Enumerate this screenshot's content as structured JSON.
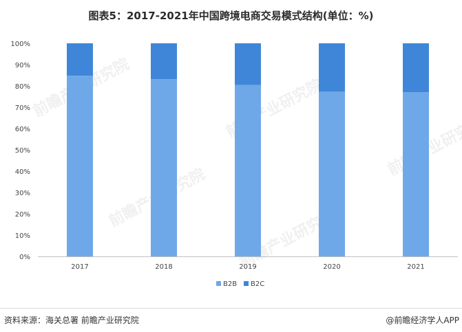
{
  "title": "图表5：2017-2021年中国跨境电商交易模式结构(单位：%)",
  "chart_data": {
    "type": "bar",
    "stacked": true,
    "categories": [
      "2017",
      "2018",
      "2019",
      "2020",
      "2021"
    ],
    "series": [
      {
        "name": "B2B",
        "values": [
          84.8,
          83.2,
          80.5,
          77.3,
          77.0
        ],
        "color": "#6fa8e8"
      },
      {
        "name": "B2C",
        "values": [
          15.2,
          16.8,
          19.5,
          22.7,
          23.0
        ],
        "color": "#3f86d8"
      }
    ],
    "yticks": [
      "0%",
      "10%",
      "20%",
      "30%",
      "40%",
      "50%",
      "60%",
      "70%",
      "80%",
      "90%",
      "100%"
    ],
    "ylim": [
      0,
      100
    ],
    "grid": false,
    "legend": "bottom-center"
  },
  "footer": {
    "source": "资料来源：海关总署 前瞻产业研究院",
    "credit": "@前瞻经济学人APP"
  },
  "watermark": "前瞻产业研究院"
}
